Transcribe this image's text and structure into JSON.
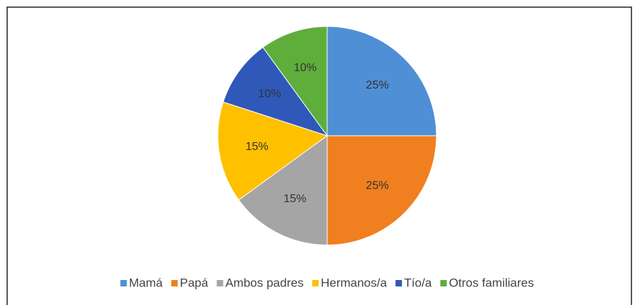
{
  "chart_data": {
    "type": "pie",
    "categories": [
      "Mamá",
      "Papá",
      "Ambos padres",
      "Hermanos/a",
      "Tío/a",
      "Otros familiares"
    ],
    "values": [
      25,
      25,
      15,
      15,
      10,
      10
    ],
    "value_labels": [
      "25%",
      "25%",
      "15%",
      "15%",
      "10%",
      "10%"
    ],
    "colors": [
      "#4f8fd6",
      "#f07f1f",
      "#a5a5a5",
      "#ffc000",
      "#2f58b8",
      "#5fae3b"
    ],
    "legend": "bottom"
  }
}
